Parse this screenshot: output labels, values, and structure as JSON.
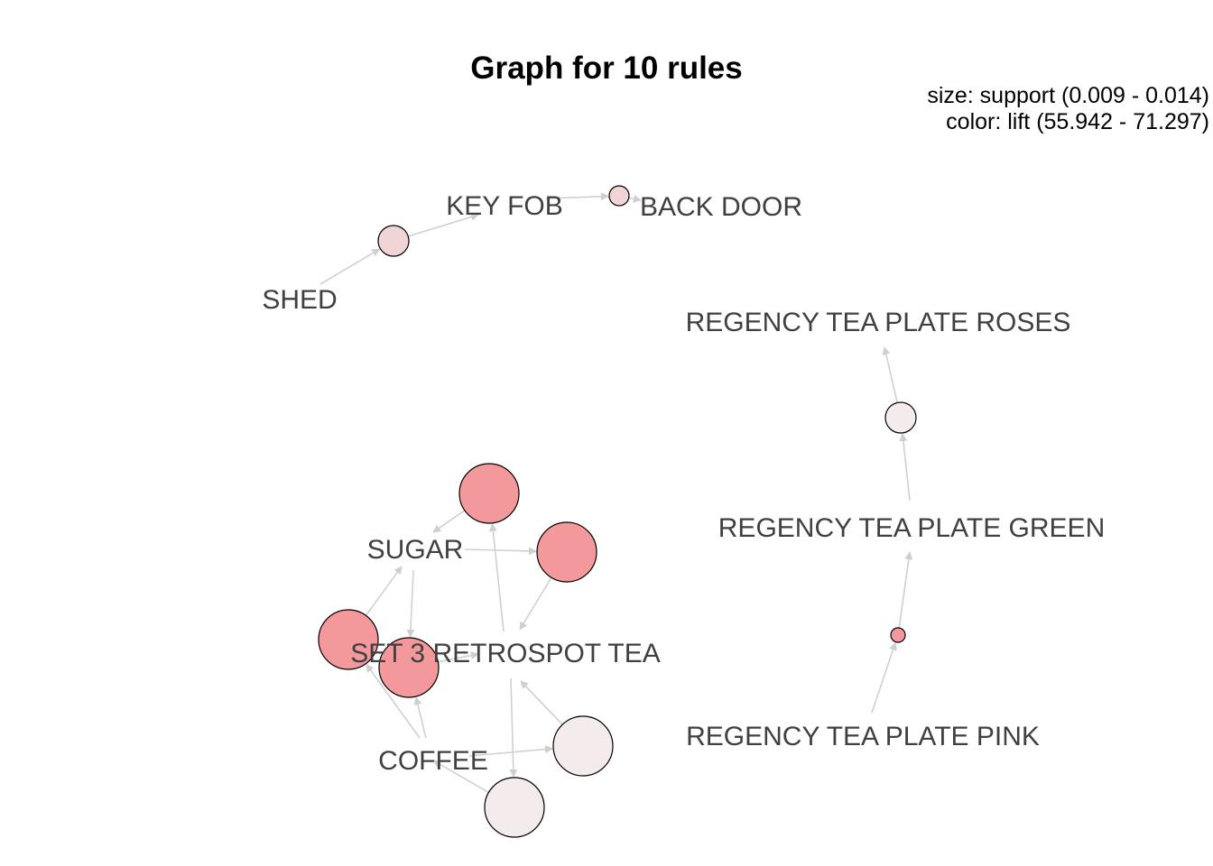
{
  "title": "Graph for 10 rules",
  "legend": {
    "size_text": "size: support (0.009 - 0.014)",
    "color_text": "color: lift (55.942 - 71.297)"
  },
  "colors": {
    "edge": "#d0d0d0",
    "arrow": "#cfcfcf",
    "node_stroke": "#000000",
    "label": "#404040",
    "lift_high": "#f4999b",
    "lift_mid": "#f1d4d4",
    "lift_low": "#f4ecec"
  },
  "items": [
    {
      "id": "shed",
      "label": "SHED"
    },
    {
      "id": "keyfob",
      "label": "KEY FOB"
    },
    {
      "id": "backdoor",
      "label": "BACK DOOR"
    },
    {
      "id": "roses",
      "label": "REGENCY TEA PLATE ROSES"
    },
    {
      "id": "green",
      "label": "REGENCY TEA PLATE GREEN"
    },
    {
      "id": "pink",
      "label": "REGENCY TEA PLATE PINK"
    },
    {
      "id": "sugar",
      "label": "SUGAR"
    },
    {
      "id": "tea",
      "label": "SET 3 RETROSPOT TEA"
    },
    {
      "id": "coffee",
      "label": "COFFEE"
    }
  ],
  "rules": [
    {
      "id": "r1",
      "lhs": [
        "shed"
      ],
      "rhs": [
        "keyfob"
      ],
      "size": "medium",
      "color": "lift_mid"
    },
    {
      "id": "r2",
      "lhs": [
        "keyfob"
      ],
      "rhs": [
        "backdoor"
      ],
      "size": "small",
      "color": "lift_mid"
    },
    {
      "id": "r3",
      "lhs": [
        "green"
      ],
      "rhs": [
        "roses"
      ],
      "size": "medium",
      "color": "lift_low"
    },
    {
      "id": "r4",
      "lhs": [
        "pink"
      ],
      "rhs": [
        "green"
      ],
      "size": "tiny",
      "color": "lift_high"
    },
    {
      "id": "r5",
      "lhs": [
        "tea"
      ],
      "rhs": [
        "sugar"
      ],
      "size": "large",
      "color": "lift_high"
    },
    {
      "id": "r6",
      "lhs": [
        "sugar"
      ],
      "rhs": [
        "tea"
      ],
      "size": "large",
      "color": "lift_high"
    },
    {
      "id": "r7",
      "lhs": [
        "coffee"
      ],
      "rhs": [
        "sugar"
      ],
      "size": "large",
      "color": "lift_high"
    },
    {
      "id": "r8",
      "lhs": [
        "sugar",
        "coffee"
      ],
      "rhs": [
        "tea"
      ],
      "size": "large",
      "color": "lift_high"
    },
    {
      "id": "r9",
      "lhs": [
        "coffee"
      ],
      "rhs": [
        "tea"
      ],
      "size": "large",
      "color": "lift_low"
    },
    {
      "id": "r10",
      "lhs": [
        "tea"
      ],
      "rhs": [
        "coffee"
      ],
      "size": "large",
      "color": "lift_low"
    }
  ]
}
